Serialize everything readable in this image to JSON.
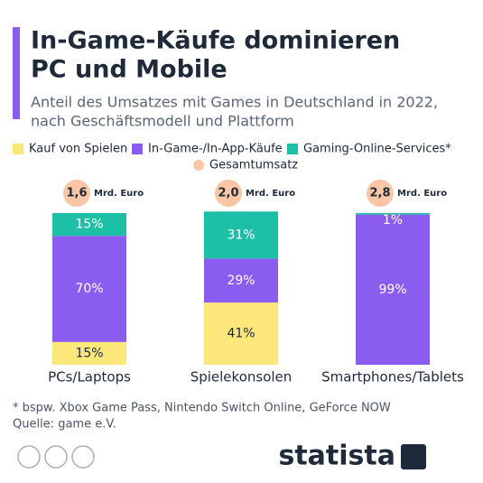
{
  "chart_data": {
    "type": "stacked_bar_100",
    "title": [
      "In-Game-Käufe dominieren",
      "PC und Mobile"
    ],
    "subtitle": [
      "Anteil des Umsatzes mit Games in Deutschland in 2022,",
      "nach Geschäftsmodell und Plattform"
    ],
    "categories": [
      "PCs/Laptops",
      "Spielekonsolen",
      "Smartphones/Tablets"
    ],
    "series": [
      {
        "name": "Kauf von Spielen",
        "color": "#fde67a",
        "values": [
          15,
          41,
          0
        ],
        "value_labels": [
          "15%",
          "41%",
          null
        ]
      },
      {
        "name": "In-Game-/In-App-Käufe",
        "color": "#8b5cf0",
        "values": [
          70,
          29,
          99
        ],
        "value_labels": [
          "70%",
          "29%",
          "99%"
        ]
      },
      {
        "name": "Gaming-Online-Services*",
        "color": "#1cc0a7",
        "values": [
          15,
          31,
          1
        ],
        "value_labels": [
          "15%",
          "31%",
          "1%"
        ]
      }
    ],
    "totals": {
      "name": "Gesamtumsatz",
      "color": "#fbc6a6",
      "values": [
        1.6,
        2.0,
        2.8
      ],
      "value_labels": [
        "1,6",
        "2,0",
        "2,8"
      ],
      "unit": "Mrd. Euro"
    },
    "ylim": [
      0,
      100
    ],
    "notes": [
      "* bspw. Xbox Game Pass, Nintendo Switch Online, GeForce NOW",
      "Quelle: game e.V."
    ]
  },
  "brand": "statista"
}
